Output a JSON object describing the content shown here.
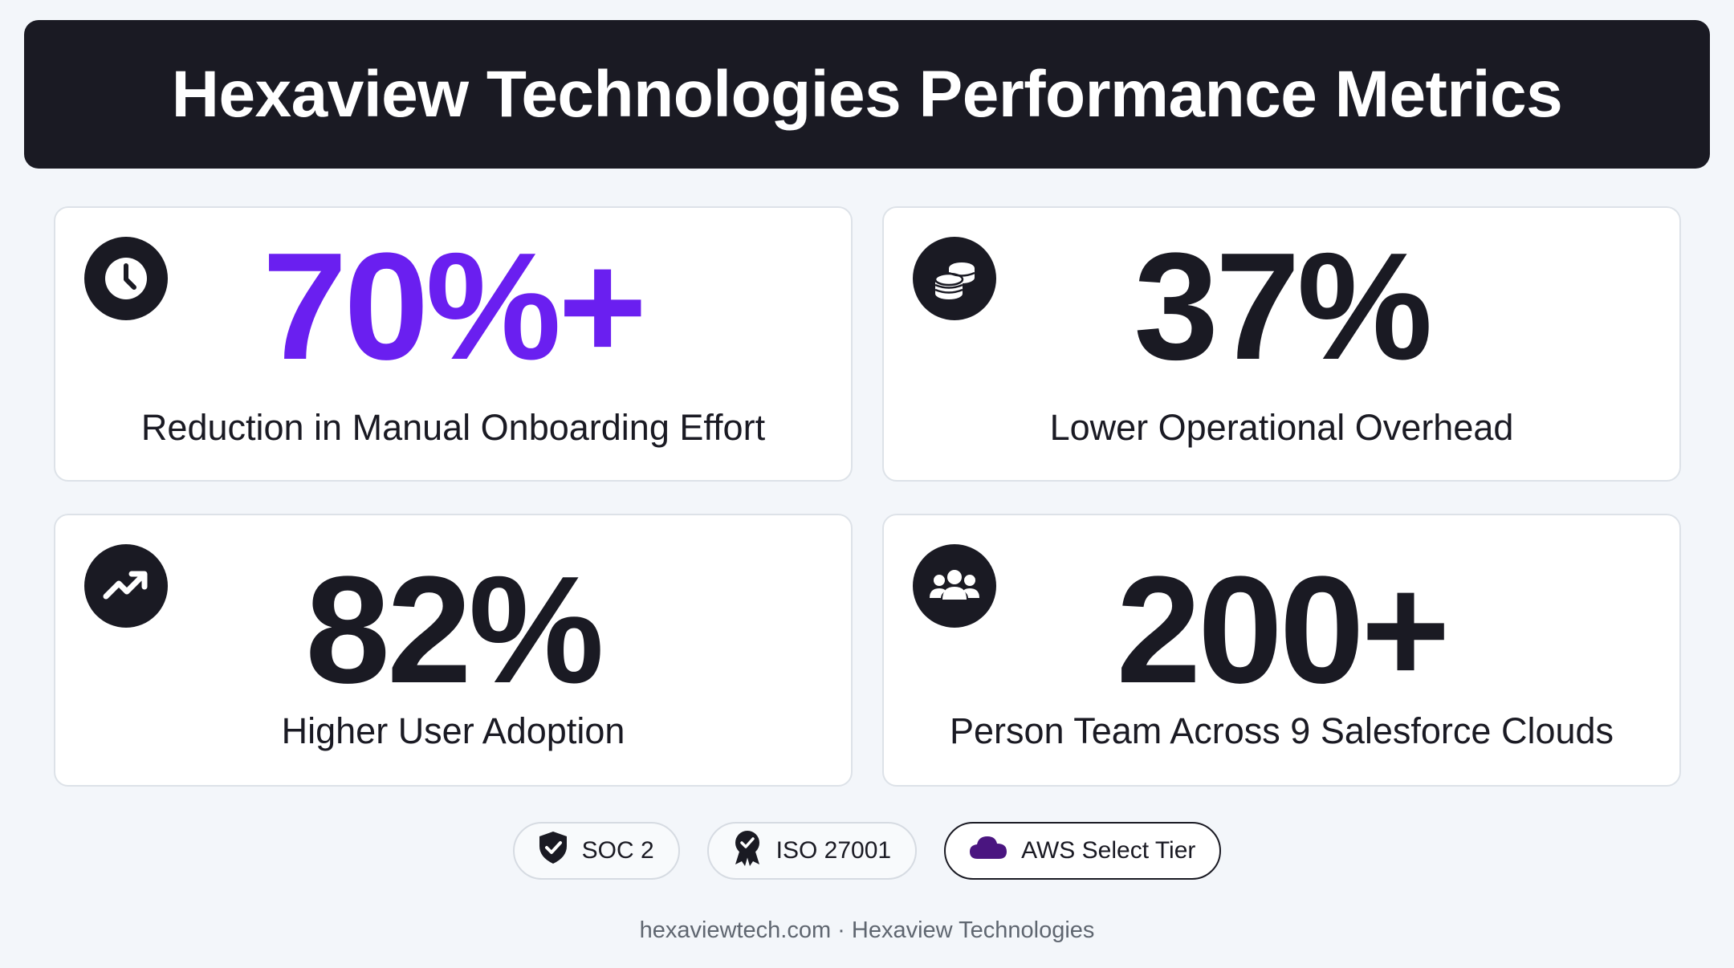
{
  "banner": {
    "title": "Hexaview Technologies Performance Metrics"
  },
  "metrics": [
    {
      "value": "70%+",
      "label": "Reduction in Manual Onboarding Effort",
      "icon": "clock-icon",
      "value_color": "#6a1ff0"
    },
    {
      "value": "37%",
      "label": "Lower Operational Overhead",
      "icon": "coins-icon",
      "value_color": "#1a1a23"
    },
    {
      "value": "82%",
      "label": "Higher User Adoption",
      "icon": "trending-up-icon",
      "value_color": "#1a1a23"
    },
    {
      "value": "200+",
      "label": "Person Team Across 9 Salesforce Clouds",
      "icon": "users-icon",
      "value_color": "#1a1a23"
    }
  ],
  "badges": [
    {
      "label": "SOC 2",
      "icon": "shield-check-icon"
    },
    {
      "label": "ISO 27001",
      "icon": "award-icon"
    },
    {
      "label": "AWS Select Tier",
      "icon": "cloud-icon",
      "icon_color": "#4a1580"
    }
  ],
  "footer": {
    "text": "hexaviewtech.com · Hexaview Technologies"
  },
  "colors": {
    "background": "#f3f6fa",
    "banner": "#1a1a23",
    "accent": "#6a1ff0"
  }
}
